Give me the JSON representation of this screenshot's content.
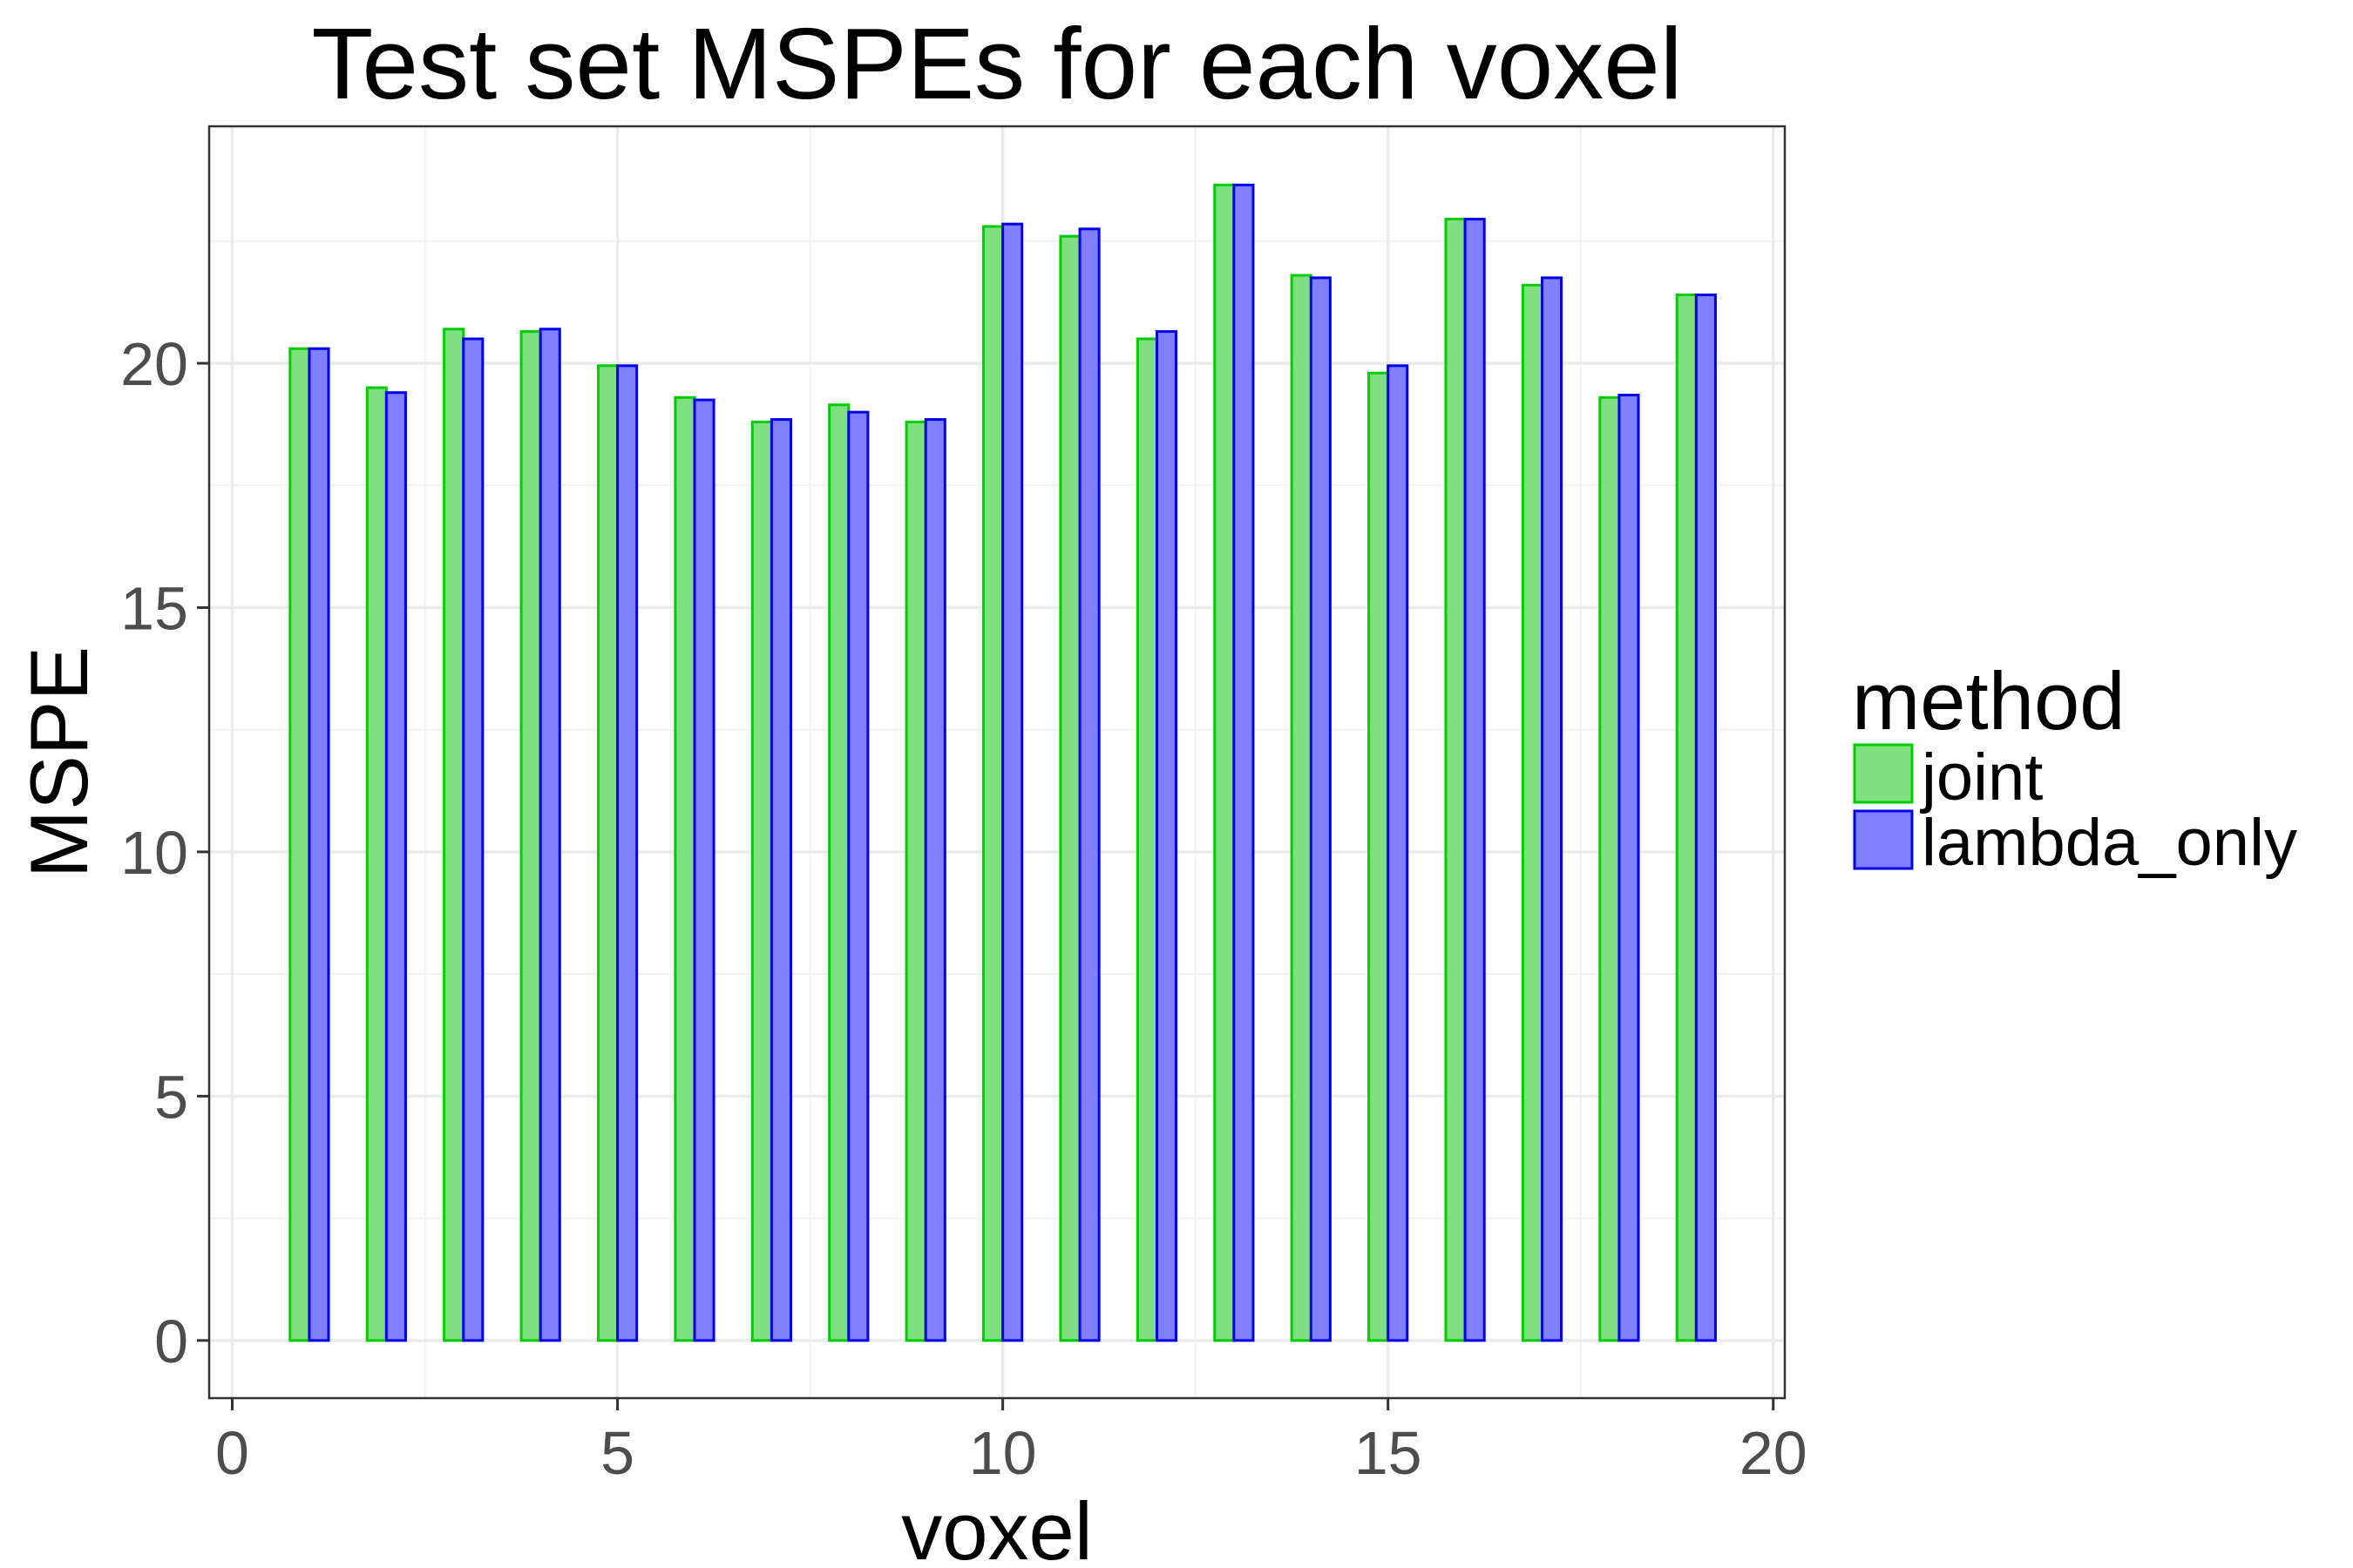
{
  "chart_data": {
    "type": "bar",
    "title": "Test set MSPEs for each voxel",
    "xlabel": "voxel",
    "ylabel": "MSPE",
    "x": [
      1,
      2,
      3,
      4,
      5,
      6,
      7,
      8,
      9,
      10,
      11,
      12,
      13,
      14,
      15,
      16,
      17,
      18,
      19
    ],
    "series": [
      {
        "name": "joint",
        "fill": "#7fe07f",
        "stroke": "#00cc00",
        "values": [
          20.3,
          19.5,
          20.7,
          20.65,
          19.95,
          19.3,
          18.8,
          19.15,
          18.8,
          22.8,
          22.6,
          20.5,
          23.65,
          21.8,
          19.8,
          22.95,
          21.6,
          19.3,
          21.4
        ]
      },
      {
        "name": "lambda_only",
        "fill": "#7f7fff",
        "stroke": "#0000ee",
        "values": [
          20.3,
          19.4,
          20.5,
          20.7,
          19.95,
          19.25,
          18.85,
          19.0,
          18.85,
          22.85,
          22.75,
          20.65,
          23.65,
          21.75,
          19.95,
          22.95,
          21.75,
          19.35,
          21.4
        ]
      }
    ],
    "xlim": [
      -0.3,
      20.15
    ],
    "ylim": [
      -1.18,
      24.85
    ],
    "xticks": [
      0,
      5,
      10,
      15,
      20
    ],
    "yticks": [
      0,
      5,
      10,
      15,
      20
    ],
    "grid": true,
    "legend": {
      "title": "method",
      "position": "right",
      "entries": [
        "joint",
        "lambda_only"
      ]
    },
    "x_tick_labels": [
      "0",
      "5",
      "10",
      "15",
      "20"
    ],
    "y_tick_labels": [
      "0",
      "5",
      "10",
      "15",
      "20"
    ]
  }
}
